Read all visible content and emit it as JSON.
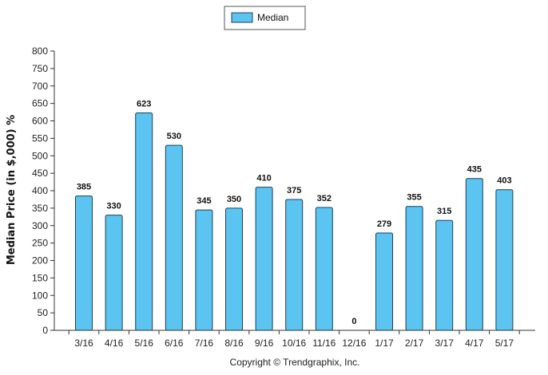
{
  "chart_data": {
    "type": "bar",
    "title": "",
    "ylabel": "Median Price (in $,000) %",
    "xlabel": "",
    "ylim": [
      0,
      800
    ],
    "ytick_step": 50,
    "grid": false,
    "legend_position": "top-center",
    "bar_color": "#5bc4f1",
    "bar_stroke": "#1f3f55",
    "categories": [
      "3/16",
      "4/16",
      "5/16",
      "6/16",
      "7/16",
      "8/16",
      "9/16",
      "10/16",
      "11/16",
      "12/16",
      "1/17",
      "2/17",
      "3/17",
      "4/17",
      "5/17"
    ],
    "series": [
      {
        "name": "Median",
        "values": [
          385,
          330,
          623,
          530,
          345,
          350,
          410,
          375,
          352,
          0,
          279,
          355,
          315,
          435,
          403
        ]
      }
    ]
  },
  "footer": {
    "copyright": "Copyright © Trendgraphix, Inc."
  }
}
